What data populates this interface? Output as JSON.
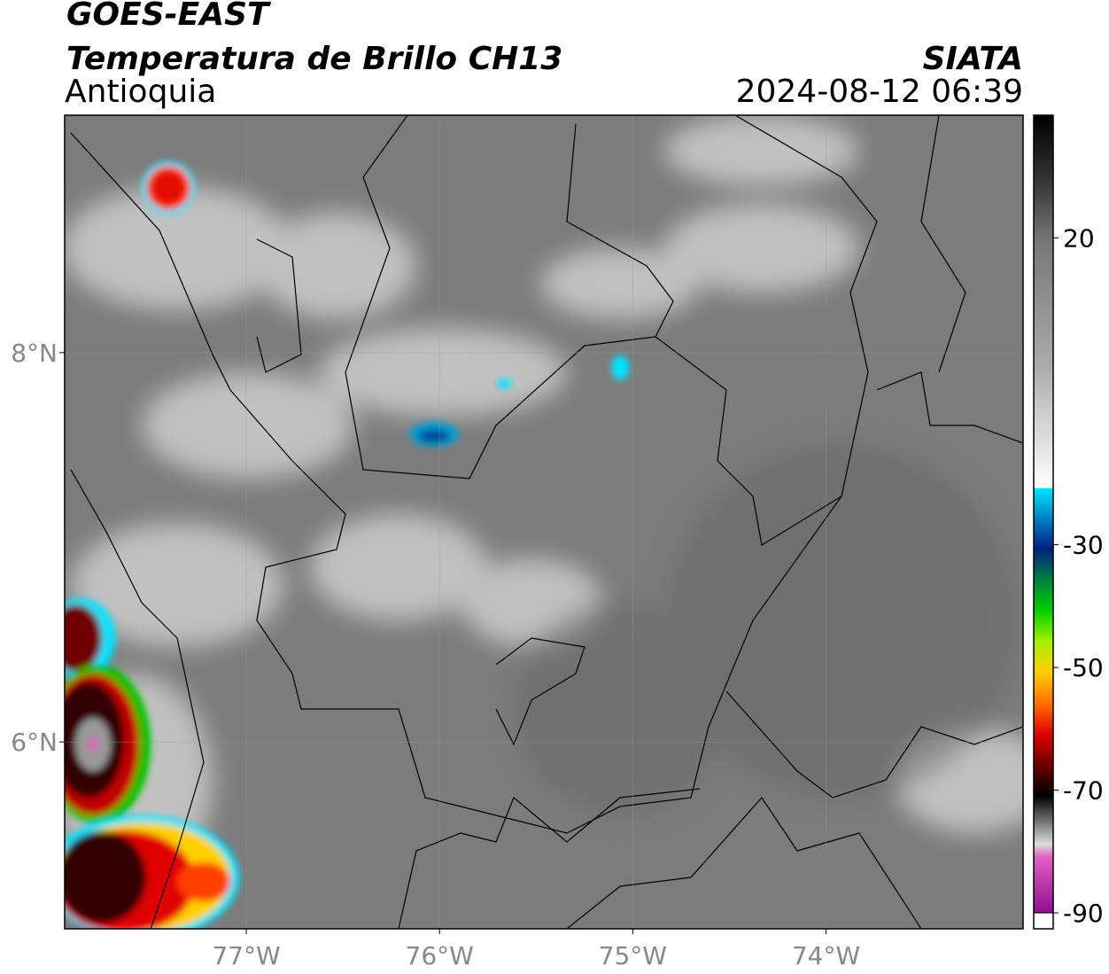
{
  "header": {
    "title": "GOES-EAST",
    "subtitle": "Temperatura de Brillo CH13",
    "region": "Antioquia",
    "source": "SIATA",
    "datetime": "2024-08-12 06:39"
  },
  "map": {
    "xlim": [
      -77.94,
      -72.98
    ],
    "ylim": [
      5.04,
      9.22
    ],
    "xticks": [
      {
        "value": -77,
        "label": "77°W"
      },
      {
        "value": -76,
        "label": "76°W"
      },
      {
        "value": -75,
        "label": "75°W"
      },
      {
        "value": -74,
        "label": "74°W"
      }
    ],
    "yticks": [
      {
        "value": 8,
        "label": "8°N"
      },
      {
        "value": 6,
        "label": "6°N"
      }
    ]
  },
  "colorbar": {
    "lim": [
      -90,
      40
    ],
    "ticks": [
      20,
      -30,
      -50,
      -70,
      -90
    ]
  }
}
